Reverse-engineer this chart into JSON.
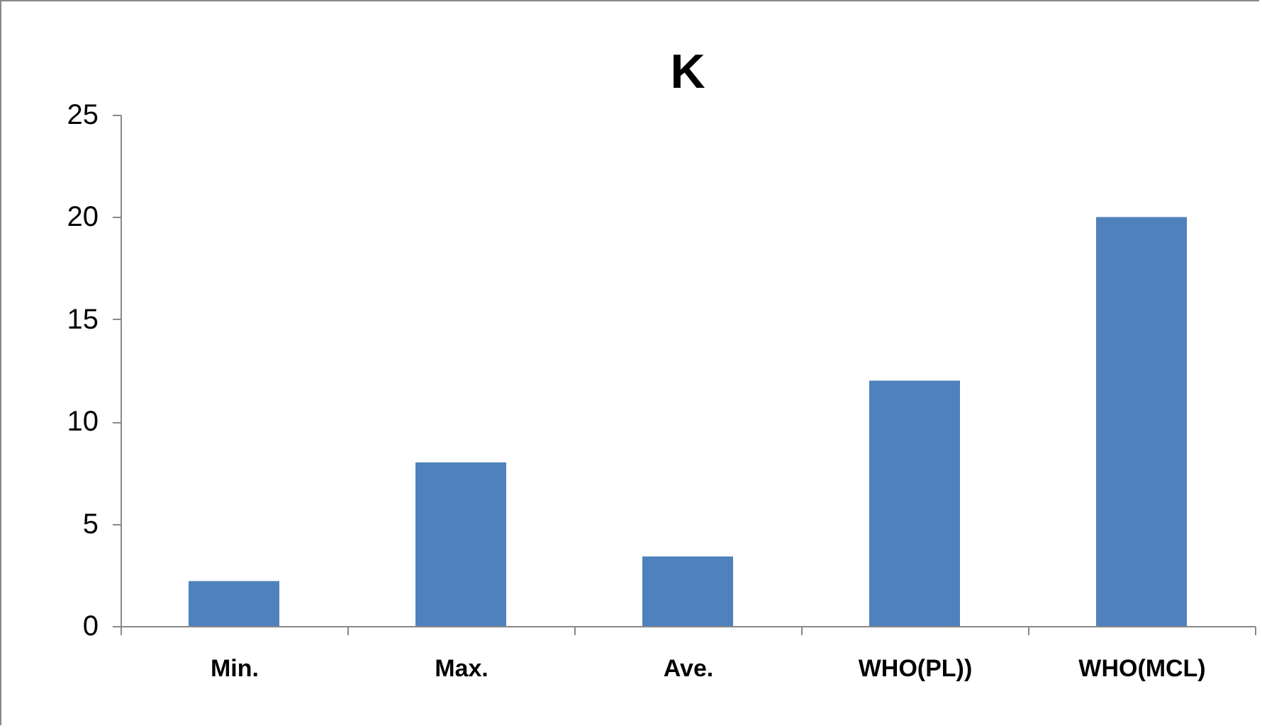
{
  "chart_data": {
    "type": "bar",
    "title": "K",
    "categories": [
      "Min.",
      "Max.",
      "Ave.",
      "WHO(PL))",
      "WHO(MCL)"
    ],
    "values": [
      2.2,
      8,
      3.4,
      12,
      20
    ],
    "color": "#4f81bd",
    "ylim": [
      0,
      25
    ],
    "yticks": [
      0,
      5,
      10,
      15,
      20,
      25
    ],
    "grid": false
  }
}
